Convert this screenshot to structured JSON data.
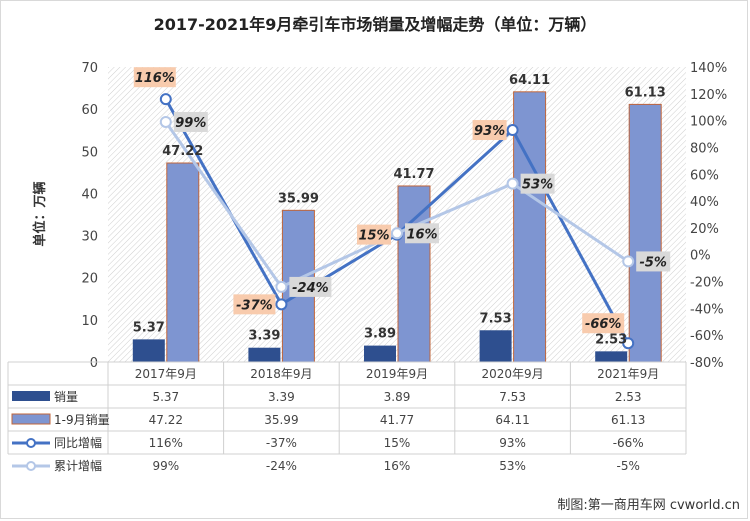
{
  "chart_data": {
    "type": "bar",
    "title": "2017-2021年9月牵引车市场销量及增幅走势（单位：万辆）",
    "ylabel": "单位：万辆",
    "ylim": [
      0,
      70
    ],
    "y2lim": [
      -0.8,
      1.4
    ],
    "categories": [
      "2017年9月",
      "2018年9月",
      "2019年9月",
      "2020年9月",
      "2021年9月"
    ],
    "bar_series": [
      {
        "name": "销量",
        "values": [
          5.37,
          3.39,
          3.89,
          7.53,
          2.53
        ],
        "labels": [
          "5.37",
          "3.39",
          "3.89",
          "7.53",
          "2.53"
        ],
        "color": "#2e4f8f"
      },
      {
        "name": "1-9月销量",
        "values": [
          47.22,
          35.99,
          41.77,
          64.11,
          61.13
        ],
        "labels": [
          "47.22",
          "35.99",
          "41.77",
          "64.11",
          "61.13"
        ],
        "color": "#7e95d1"
      }
    ],
    "line_series": [
      {
        "name": "同比增幅",
        "values": [
          1.16,
          -0.37,
          0.15,
          0.93,
          -0.66
        ],
        "labels": [
          "116%",
          "-37%",
          "15%",
          "93%",
          "-66%"
        ],
        "color": "#4472c4"
      },
      {
        "name": "累计增幅",
        "values": [
          0.99,
          -0.24,
          0.16,
          0.53,
          -0.05
        ],
        "labels": [
          "99%",
          "-24%",
          "16%",
          "53%",
          "-5%"
        ],
        "color": "#b4c7e7"
      }
    ],
    "y_ticks": [
      "0",
      "10",
      "20",
      "30",
      "40",
      "50",
      "60",
      "70"
    ],
    "y2_ticks": [
      "-80%",
      "-60%",
      "-40%",
      "-20%",
      "0%",
      "20%",
      "40%",
      "60%",
      "80%",
      "100%",
      "120%",
      "140%"
    ],
    "data_table": true,
    "grid": false
  },
  "source": "制图:第一商用车网 cvworld.cn"
}
